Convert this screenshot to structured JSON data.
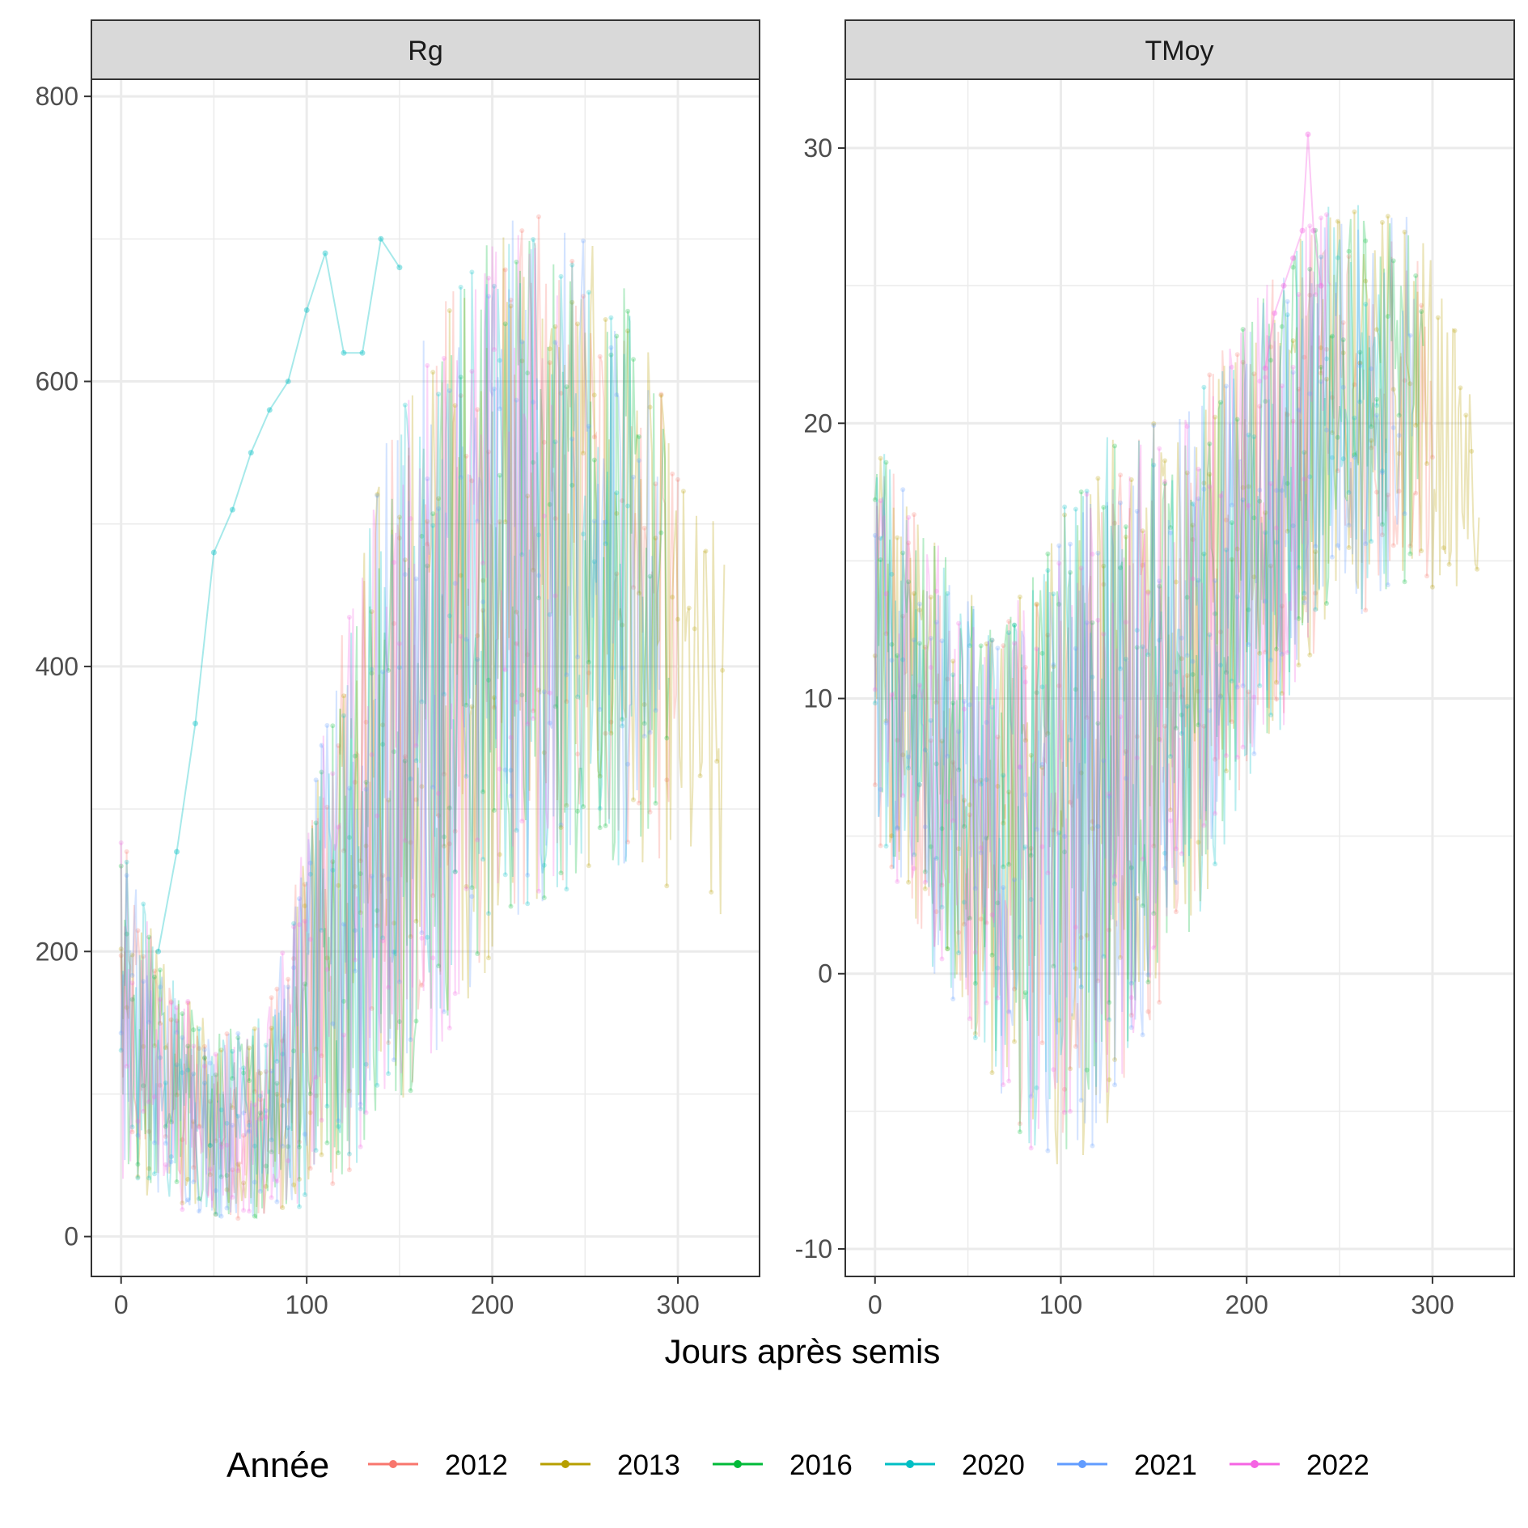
{
  "chart_data": {
    "type": "line",
    "xlabel": "Jours après semis",
    "legend": {
      "title": "Année",
      "placement": "bottom"
    },
    "series": [
      {
        "name": "2012",
        "color": "#F8766D"
      },
      {
        "name": "2013",
        "color": "#B79F00"
      },
      {
        "name": "2016",
        "color": "#00BA38"
      },
      {
        "name": "2020",
        "color": "#00BFC4"
      },
      {
        "name": "2021",
        "color": "#619CFF"
      },
      {
        "name": "2022",
        "color": "#F564E3"
      }
    ],
    "panels": [
      {
        "strip": "Rg",
        "xlim": [
          -16,
          344
        ],
        "ylim": [
          -28,
          812
        ],
        "x_ticks": [
          0,
          100,
          200,
          300
        ],
        "y_ticks": [
          0,
          200,
          400,
          600,
          800
        ],
        "envelope": {
          "x": [
            0,
            10,
            20,
            30,
            40,
            50,
            60,
            70,
            80,
            90,
            100,
            110,
            120,
            130,
            140,
            150,
            160,
            170,
            180,
            190,
            200,
            210,
            220,
            230,
            240,
            250,
            260,
            270,
            280,
            290,
            300,
            310,
            325
          ],
          "low": [
            40,
            30,
            25,
            20,
            15,
            12,
            12,
            12,
            15,
            18,
            22,
            30,
            40,
            55,
            70,
            90,
            110,
            130,
            150,
            170,
            190,
            210,
            220,
            230,
            240,
            250,
            255,
            260,
            260,
            250,
            230,
            200,
            180
          ],
          "high": [
            280,
            250,
            200,
            180,
            160,
            150,
            150,
            155,
            170,
            220,
            290,
            360,
            430,
            490,
            550,
            590,
            620,
            650,
            680,
            700,
            710,
            715,
            720,
            720,
            710,
            700,
            690,
            670,
            640,
            600,
            540,
            520,
            500
          ]
        },
        "outlier_series": "2020",
        "outlier_trace": {
          "x": [
            20,
            30,
            40,
            50,
            60,
            70,
            80,
            90,
            100,
            110,
            120,
            130,
            140,
            150
          ],
          "y": [
            200,
            270,
            360,
            480,
            510,
            550,
            580,
            600,
            650,
            690,
            620,
            620,
            700,
            680
          ]
        }
      },
      {
        "strip": "TMoy",
        "xlim": [
          -16,
          344
        ],
        "ylim": [
          -11,
          32.5
        ],
        "x_ticks": [
          0,
          100,
          200,
          300
        ],
        "y_ticks": [
          -10,
          0,
          10,
          20,
          30
        ],
        "envelope": {
          "x": [
            0,
            10,
            20,
            30,
            40,
            50,
            60,
            70,
            80,
            90,
            100,
            110,
            120,
            130,
            140,
            150,
            160,
            170,
            180,
            190,
            200,
            210,
            220,
            230,
            240,
            250,
            260,
            270,
            280,
            290,
            300,
            310,
            325
          ],
          "low": [
            5,
            3,
            2,
            0,
            -1,
            -2,
            -3,
            -5,
            -6,
            -7,
            -7,
            -7,
            -6,
            -5,
            -3,
            -2,
            0,
            1,
            3,
            5,
            7,
            8,
            9,
            11,
            12,
            13,
            13,
            13,
            14,
            14,
            14,
            14,
            14
          ],
          "high": [
            19,
            19,
            17,
            16,
            15,
            14,
            13,
            13,
            14,
            15,
            17,
            18,
            19,
            20,
            20,
            20,
            20,
            21,
            22,
            23,
            24,
            25,
            26,
            27,
            28,
            28,
            28,
            28,
            28,
            28,
            26,
            24,
            20
          ]
        },
        "outlier_series": "2022",
        "outlier_trace": {
          "x": [
            210,
            215,
            220,
            225,
            230,
            233,
            236,
            240
          ],
          "y": [
            22,
            24,
            25,
            26,
            27,
            30.5,
            27,
            25
          ]
        }
      }
    ]
  }
}
